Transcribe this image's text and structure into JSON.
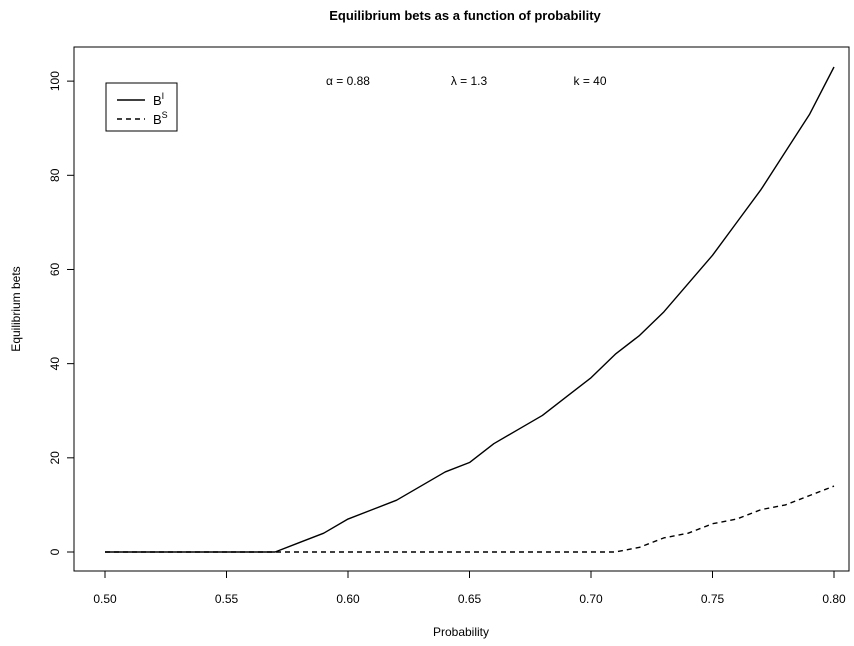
{
  "chart_data": {
    "type": "line",
    "title": "Equilibrium bets as a function of probability",
    "xlabel": "Probability",
    "ylabel": "Equilibrium bets",
    "xlim": [
      0.5,
      0.8
    ],
    "ylim": [
      0,
      103
    ],
    "x_ticks": [
      "0.50",
      "0.55",
      "0.60",
      "0.65",
      "0.70",
      "0.75",
      "0.80"
    ],
    "y_ticks": [
      "0",
      "20",
      "40",
      "60",
      "80",
      "100"
    ],
    "annotations": [
      "α = 0.88",
      "λ = 1.3",
      "k = 40"
    ],
    "legend": {
      "placement": "top-left",
      "entries": [
        {
          "base": "B",
          "sup": "I",
          "line_style": "solid"
        },
        {
          "base": "B",
          "sup": "S",
          "line_style": "dashed"
        }
      ]
    },
    "x": [
      0.5,
      0.51,
      0.52,
      0.53,
      0.54,
      0.55,
      0.56,
      0.57,
      0.58,
      0.59,
      0.6,
      0.61,
      0.62,
      0.63,
      0.64,
      0.65,
      0.66,
      0.67,
      0.68,
      0.69,
      0.7,
      0.71,
      0.72,
      0.73,
      0.74,
      0.75,
      0.76,
      0.77,
      0.78,
      0.79,
      0.8
    ],
    "series": [
      {
        "line_style": "solid",
        "values": [
          0,
          0,
          0,
          0,
          0,
          0,
          0,
          0,
          2,
          4,
          7,
          9,
          11,
          14,
          17,
          19,
          23,
          26,
          29,
          33,
          37,
          42,
          46,
          51,
          57,
          63,
          70,
          77,
          85,
          93,
          103
        ]
      },
      {
        "line_style": "dashed",
        "values": [
          0,
          0,
          0,
          0,
          0,
          0,
          0,
          0,
          0,
          0,
          0,
          0,
          0,
          0,
          0,
          0,
          0,
          0,
          0,
          0,
          0,
          0,
          1,
          3,
          4,
          6,
          7,
          9,
          10,
          12,
          14
        ]
      }
    ]
  }
}
